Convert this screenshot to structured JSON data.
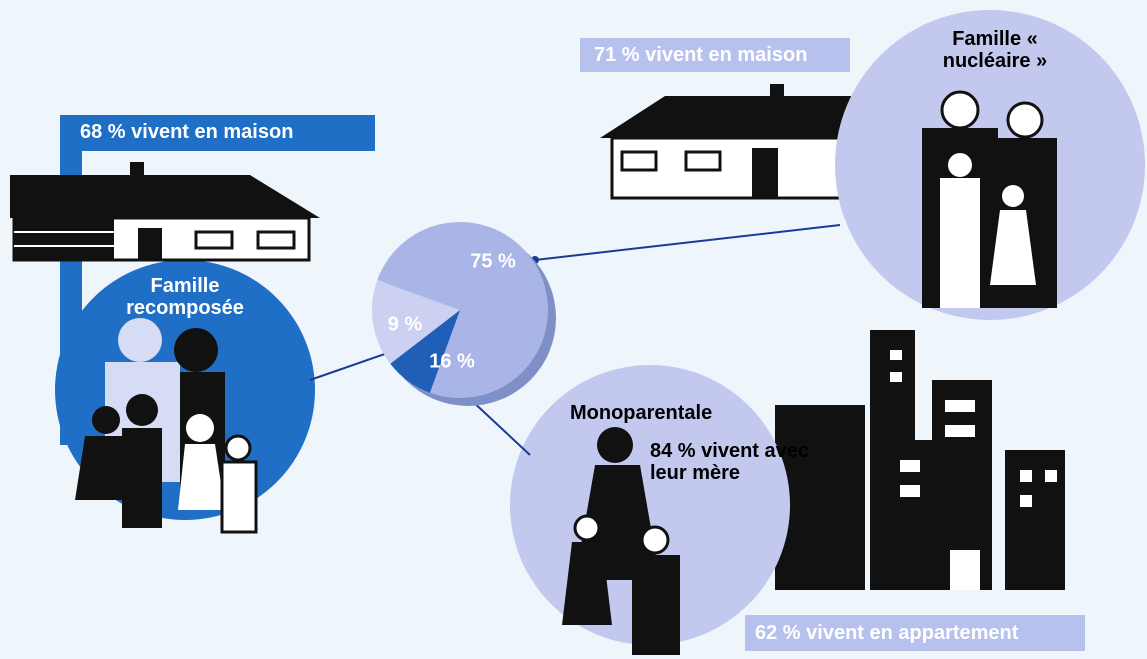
{
  "chart_data": {
    "type": "pie",
    "categories": [
      "Famille « nucléaire »",
      "Famille recomposée",
      "Monoparentale"
    ],
    "values": [
      75,
      9,
      16
    ],
    "value_labels": [
      "75 %",
      "9 %",
      "16 %"
    ],
    "colors": [
      "#a9b5e6",
      "#1f5fb8",
      "#ccd1f2"
    ],
    "annotations": [
      "71 % vivent en maison",
      "68 % vivent en maison",
      "84 % vivent avec leur mère",
      "62 % vivent en appartement"
    ]
  }
}
